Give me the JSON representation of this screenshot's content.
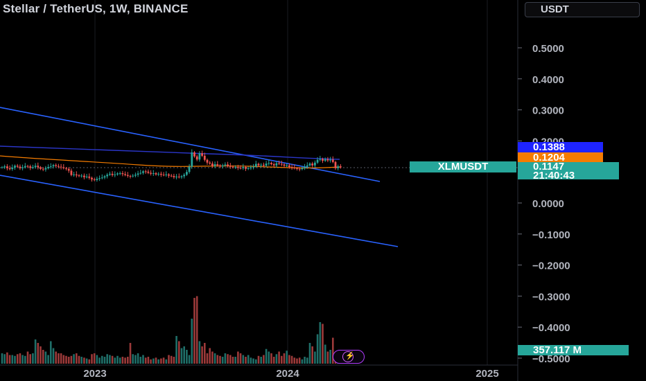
{
  "header": {
    "title": "Stellar / TetherUS, 1W, BINANCE",
    "currency": "USDT"
  },
  "price_scale": {
    "ticks": [
      "0.5000",
      "0.4000",
      "0.3000",
      "0.2000",
      "0.1000",
      "0.0000",
      "−0.1000",
      "−0.2000",
      "−0.3000",
      "−0.4000",
      "−0.5000"
    ]
  },
  "time_scale": {
    "ticks": [
      "2023",
      "2024",
      "2025"
    ]
  },
  "badges": {
    "blue_value": "0.1388",
    "orange_value": "0.1204",
    "last_price": "0.1147",
    "countdown": "21:40:43",
    "symbol": "XLMUSDT",
    "volume": "357.117 M"
  },
  "flash_icon": "lightning-icon",
  "colors": {
    "up": "#26a69a",
    "down": "#ef5350",
    "trendline": "#2962ff",
    "ma_blue": "#2b36c9",
    "ma_orange": "#f57c00"
  },
  "chart_data": {
    "type": "candlestick",
    "ylim": [
      -0.5,
      0.55
    ],
    "close": [
      0.115,
      0.118,
      0.112,
      0.109,
      0.114,
      0.12,
      0.117,
      0.112,
      0.115,
      0.119,
      0.118,
      0.113,
      0.116,
      0.12,
      0.115,
      0.11,
      0.108,
      0.112,
      0.116,
      0.118,
      0.122,
      0.119,
      0.117,
      0.115,
      0.112,
      0.11,
      0.104,
      0.09,
      0.092,
      0.089,
      0.087,
      0.088,
      0.083,
      0.085,
      0.081,
      0.076,
      0.074,
      0.078,
      0.08,
      0.082,
      0.086,
      0.091,
      0.094,
      0.09,
      0.092,
      0.095,
      0.096,
      0.093,
      0.09,
      0.087,
      0.086,
      0.088,
      0.091,
      0.095,
      0.097,
      0.102,
      0.101,
      0.097,
      0.094,
      0.096,
      0.092,
      0.094,
      0.091,
      0.09,
      0.092,
      0.088,
      0.087,
      0.083,
      0.085,
      0.083,
      0.086,
      0.091,
      0.1,
      0.117,
      0.163,
      0.15,
      0.14,
      0.16,
      0.152,
      0.139,
      0.13,
      0.127,
      0.119,
      0.125,
      0.121,
      0.118,
      0.121,
      0.124,
      0.119,
      0.117,
      0.115,
      0.116,
      0.113,
      0.112,
      0.116,
      0.11,
      0.112,
      0.115,
      0.117,
      0.126,
      0.121,
      0.123,
      0.12,
      0.127,
      0.129,
      0.125,
      0.121,
      0.128,
      0.126,
      0.124,
      0.12,
      0.121,
      0.116,
      0.114,
      0.112,
      0.11,
      0.109,
      0.112,
      0.117,
      0.121,
      0.127,
      0.121,
      0.13,
      0.139,
      0.142,
      0.136,
      0.141,
      0.137,
      0.14,
      0.132,
      0.112,
      0.118,
      0.1147
    ],
    "volume": [
      60,
      55,
      65,
      50,
      50,
      45,
      55,
      60,
      50,
      45,
      70,
      55,
      60,
      140,
      120,
      100,
      80,
      70,
      50,
      130,
      90,
      70,
      60,
      60,
      50,
      45,
      40,
      45,
      55,
      60,
      45,
      40,
      35,
      30,
      25,
      55,
      60,
      50,
      35,
      45,
      40,
      55,
      50,
      45,
      35,
      45,
      35,
      40,
      35,
      40,
      120,
      55,
      50,
      60,
      40,
      50,
      35,
      40,
      25,
      30,
      35,
      25,
      30,
      35,
      25,
      50,
      45,
      40,
      160,
      130,
      90,
      100,
      80,
      50,
      260,
      380,
      390,
      130,
      100,
      120,
      60,
      90,
      70,
      60,
      50,
      45,
      40,
      60,
      55,
      50,
      40,
      40,
      70,
      60,
      50,
      40,
      50,
      35,
      30,
      25,
      45,
      40,
      50,
      85,
      70,
      60,
      40,
      55,
      70,
      45,
      60,
      75,
      50,
      45,
      35,
      30,
      35,
      25,
      40,
      35,
      120,
      100,
      70,
      170,
      240,
      230,
      110,
      70,
      80,
      150,
      30,
      20,
      15
    ]
  }
}
